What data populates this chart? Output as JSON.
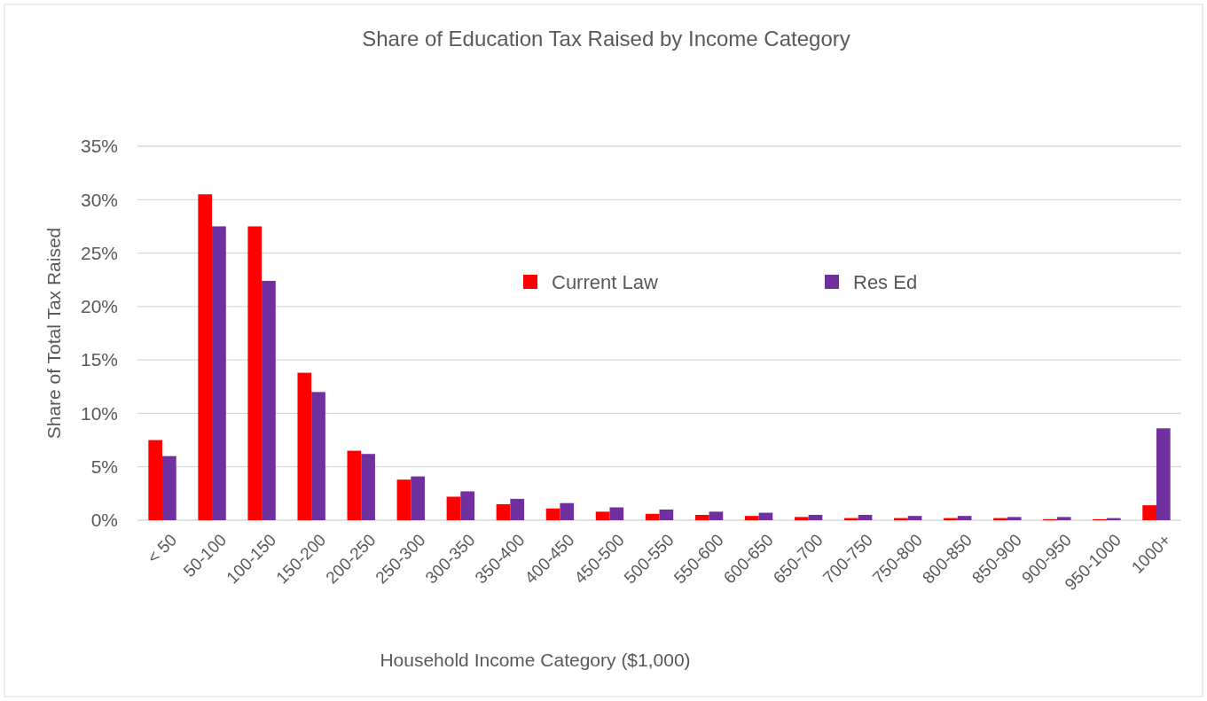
{
  "chart_data": {
    "type": "bar",
    "title": "Share of Education Tax Raised by Income Category",
    "xlabel": "Household Income Category ($1,000)",
    "ylabel": "Share of Total Tax Raised",
    "categories": [
      "< 50",
      "50-100",
      "100-150",
      "150-200",
      "200-250",
      "250-300",
      "300-350",
      "350-400",
      "400-450",
      "450-500",
      "500-550",
      "550-600",
      "600-650",
      "650-700",
      "700-750",
      "750-800",
      "800-850",
      "850-900",
      "900-950",
      "950-1000",
      "1000+"
    ],
    "series": [
      {
        "name": "Current Law",
        "color": "#ff0000",
        "values": [
          7.5,
          30.5,
          27.5,
          13.8,
          6.5,
          3.8,
          2.2,
          1.5,
          1.1,
          0.8,
          0.6,
          0.5,
          0.4,
          0.3,
          0.2,
          0.2,
          0.2,
          0.2,
          0.1,
          0.1,
          1.4
        ]
      },
      {
        "name": "Res Ed",
        "color": "#7030a0",
        "values": [
          6.0,
          27.5,
          22.4,
          12.0,
          6.2,
          4.1,
          2.7,
          2.0,
          1.6,
          1.2,
          1.0,
          0.8,
          0.7,
          0.5,
          0.5,
          0.4,
          0.4,
          0.3,
          0.3,
          0.2,
          8.6
        ]
      }
    ],
    "ylim": [
      0,
      35
    ],
    "yticks": [
      {
        "value": 0,
        "label": "0%"
      },
      {
        "value": 5,
        "label": "5%"
      },
      {
        "value": 10,
        "label": "10%"
      },
      {
        "value": 15,
        "label": "15%"
      },
      {
        "value": 20,
        "label": "20%"
      },
      {
        "value": 25,
        "label": "25%"
      },
      {
        "value": 30,
        "label": "30%"
      },
      {
        "value": 35,
        "label": "35%"
      }
    ],
    "grid": "y",
    "legend": "top"
  }
}
